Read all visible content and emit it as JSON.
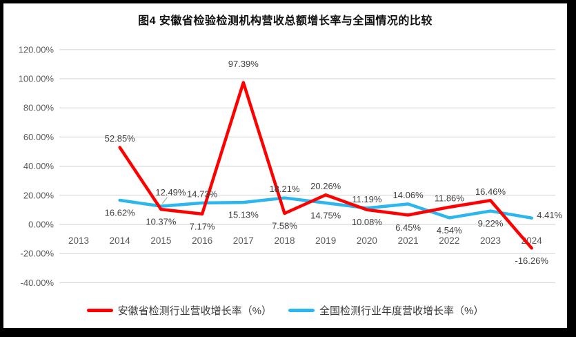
{
  "chart_data": {
    "type": "line",
    "title": "图4 安徽省检验检测机构营收总额增长率与全国情况的比较",
    "categories": [
      "2013",
      "2014",
      "2015",
      "2016",
      "2017",
      "2018",
      "2019",
      "2020",
      "2021",
      "2022",
      "2023",
      "2024"
    ],
    "y_axis": {
      "min": -40,
      "max": 120,
      "tick_step": 20,
      "tick_values": [
        120,
        100,
        80,
        60,
        40,
        20,
        0,
        -20,
        -40
      ],
      "tick_labels": [
        "120.00%",
        "100.00%",
        "80.00%",
        "60.00%",
        "40.00%",
        "20.00%",
        "0.00%",
        "-20.00%",
        "-40.00%"
      ]
    },
    "grid": true,
    "legend_position": "bottom",
    "series": [
      {
        "key": "anhui",
        "name": "安徽省检测行业营收增长率（%）",
        "color": "#fe0000",
        "values": [
          null,
          52.85,
          10.37,
          7.17,
          97.39,
          7.58,
          20.26,
          10.08,
          6.45,
          11.86,
          16.46,
          -16.26
        ],
        "labels": [
          null,
          "52.85%",
          "10.37%",
          "7.17%",
          "97.39%",
          "7.58%",
          "20.26%",
          "10.08%",
          "6.45%",
          "11.86%",
          "16.46%",
          "-16.26%"
        ],
        "label_placement": [
          null,
          "above",
          "below",
          "below",
          "above-far",
          "below",
          "above",
          "below",
          "below",
          "above",
          "above",
          "below"
        ]
      },
      {
        "key": "national",
        "name": "全国检测行业年度营收增长率（%）",
        "color": "#2cb6ee",
        "values": [
          null,
          16.62,
          12.49,
          14.73,
          15.13,
          18.21,
          14.75,
          11.19,
          14.06,
          4.54,
          9.22,
          4.41
        ],
        "labels": [
          null,
          "16.62%",
          "12.49%",
          "14.73%",
          "15.13%",
          "18.21%",
          "14.75%",
          "11.19%",
          "14.06%",
          "4.54%",
          "9.22%",
          "4.41%"
        ],
        "label_placement": [
          null,
          "below",
          "leader",
          "above",
          "below",
          "above",
          "below",
          "above",
          "above",
          "below",
          "below",
          "right"
        ]
      }
    ]
  },
  "colors": {
    "grid": "#d9d9d9",
    "axis_text": "#595959",
    "data_label": "#404040",
    "leader": "#a6a6a6"
  }
}
